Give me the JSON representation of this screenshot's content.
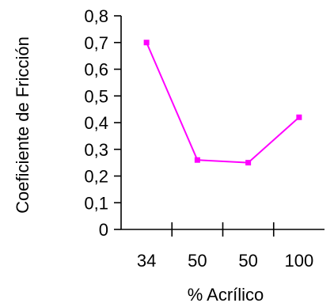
{
  "chart_data": {
    "type": "line",
    "categories": [
      "34",
      "50",
      "50",
      "100"
    ],
    "series": [
      {
        "values": [
          0.7,
          0.26,
          0.25,
          0.42
        ],
        "color": "#ff00ff"
      }
    ],
    "xlabel": "% Acrílico",
    "ylabel": "Coeficiente de Fricción",
    "ylim": [
      0,
      0.8
    ],
    "yticks": [
      "0",
      "0,1",
      "0,2",
      "0,3",
      "0,4",
      "0,5",
      "0,6",
      "0,7",
      "0,8"
    ],
    "grid": false,
    "legend": "none"
  }
}
